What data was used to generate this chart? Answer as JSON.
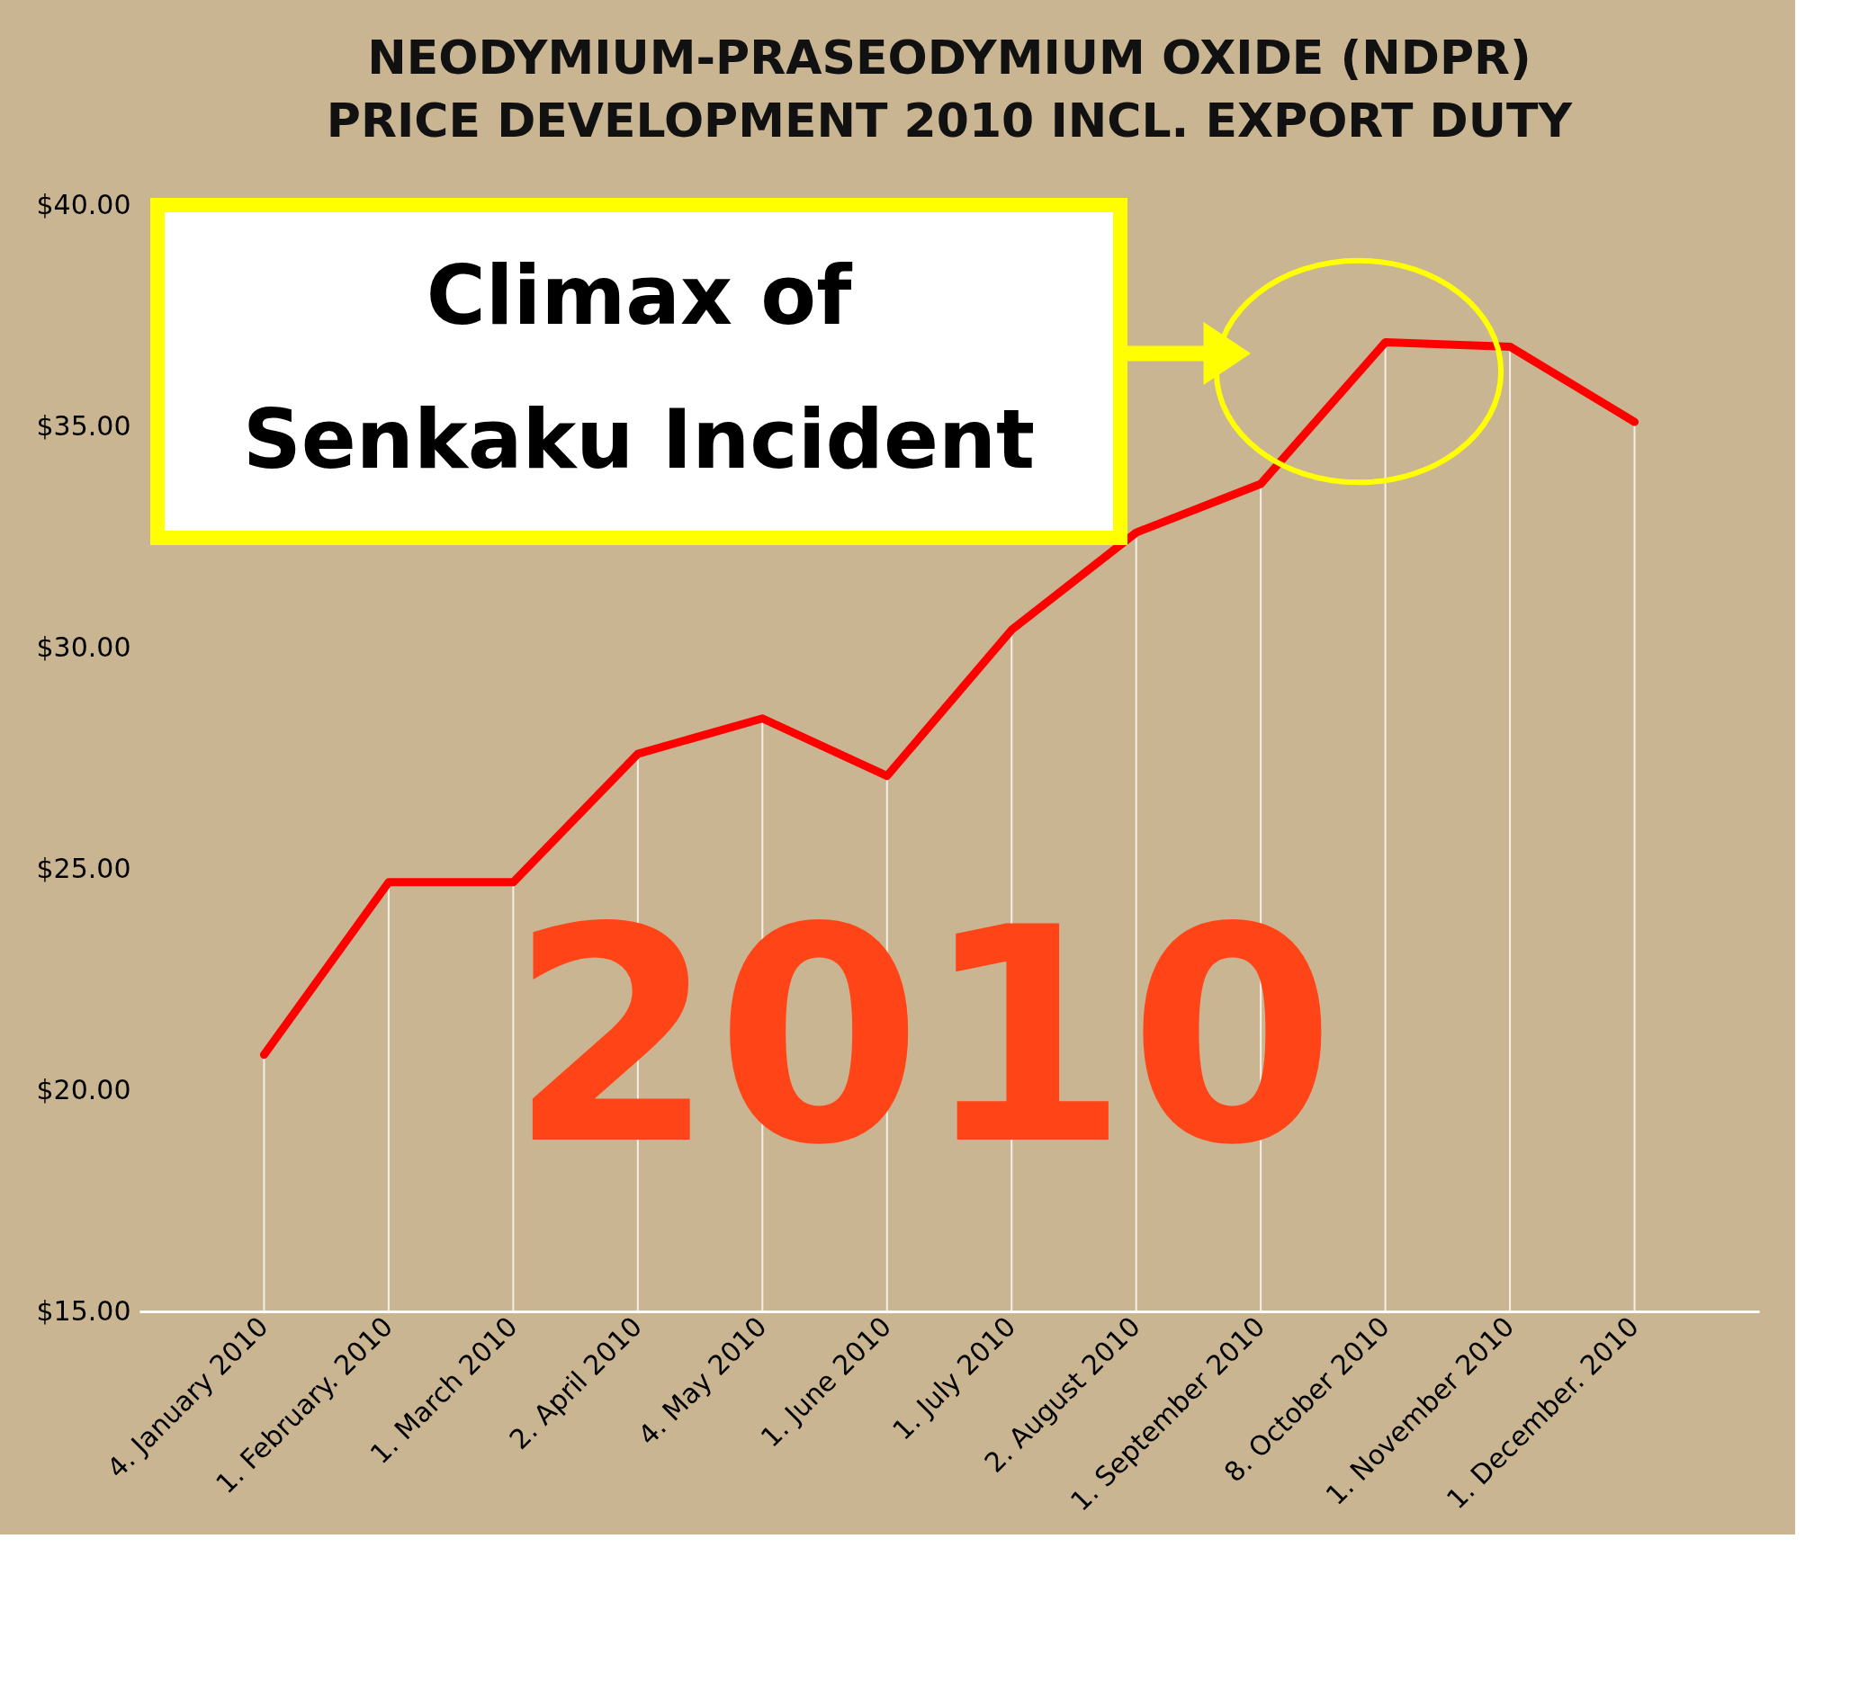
{
  "chart_data": {
    "type": "line",
    "title": "NEODYMIUM-PRASEODYMIUM OXIDE (NDPR)",
    "subtitle": "PRICE DEVELOPMENT 2010 INCL. EXPORT DUTY",
    "categories": [
      "4. January 2010",
      "1. February. 2010",
      "1. March 2010",
      "2. April 2010",
      "4. May 2010",
      "1. June 2010",
      "1. July 2010",
      "2. August 2010",
      "1. September 2010",
      "8. October 2010",
      "1. November 2010",
      "1. December. 2010"
    ],
    "series": [
      {
        "color": "#ff0000",
        "values": [
          20.8,
          24.7,
          24.7,
          27.6,
          28.4,
          27.1,
          30.4,
          32.6,
          33.7,
          36.9,
          36.8,
          35.1
        ]
      }
    ],
    "ylim": [
      15,
      40
    ],
    "yticks": [
      {
        "value": 15,
        "label": "$15.00"
      },
      {
        "value": 20,
        "label": "$20.00"
      },
      {
        "value": 25,
        "label": "$25.00"
      },
      {
        "value": 30,
        "label": "$30.00"
      },
      {
        "value": 35,
        "label": "$35.00"
      },
      {
        "value": 40,
        "label": "$40.00"
      }
    ],
    "annotations": [
      "Climax of Senkaku Incident",
      "2010"
    ],
    "grid": "x",
    "legend": false,
    "marker": "none",
    "line_style": "solid"
  }
}
